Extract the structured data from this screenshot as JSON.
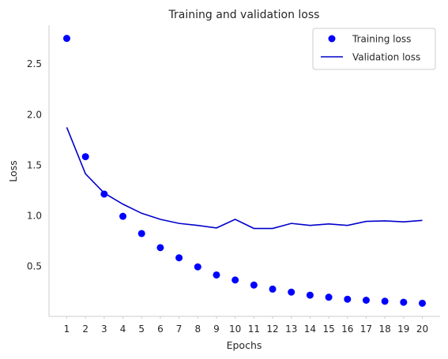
{
  "chart_data": {
    "type": "line",
    "title": "Training and validation loss",
    "xlabel": "Epochs",
    "ylabel": "Loss",
    "x": [
      1,
      2,
      3,
      4,
      5,
      6,
      7,
      8,
      9,
      10,
      11,
      12,
      13,
      14,
      15,
      16,
      17,
      18,
      19,
      20
    ],
    "xlim": [
      0.05,
      20.95
    ],
    "ylim": [
      0.0,
      2.88
    ],
    "yticks": [
      "0.5",
      "1.0",
      "1.5",
      "2.0",
      "2.5"
    ],
    "xticks": [
      "1",
      "2",
      "3",
      "4",
      "5",
      "6",
      "7",
      "8",
      "9",
      "10",
      "11",
      "12",
      "13",
      "14",
      "15",
      "16",
      "17",
      "18",
      "19",
      "20"
    ],
    "grid": false,
    "legend": "top-right",
    "series": [
      {
        "name": "Training loss",
        "style": "scatter",
        "color": "#0000ff",
        "values": [
          2.75,
          1.58,
          1.21,
          0.99,
          0.82,
          0.68,
          0.58,
          0.49,
          0.41,
          0.36,
          0.31,
          0.27,
          0.24,
          0.21,
          0.19,
          0.17,
          0.16,
          0.15,
          0.14,
          0.13
        ]
      },
      {
        "name": "Validation loss",
        "style": "line",
        "color": "#0000cc",
        "values": [
          1.87,
          1.41,
          1.22,
          1.11,
          1.02,
          0.96,
          0.92,
          0.9,
          0.875,
          0.96,
          0.87,
          0.87,
          0.92,
          0.9,
          0.915,
          0.9,
          0.94,
          0.945,
          0.935,
          0.95
        ]
      }
    ]
  }
}
